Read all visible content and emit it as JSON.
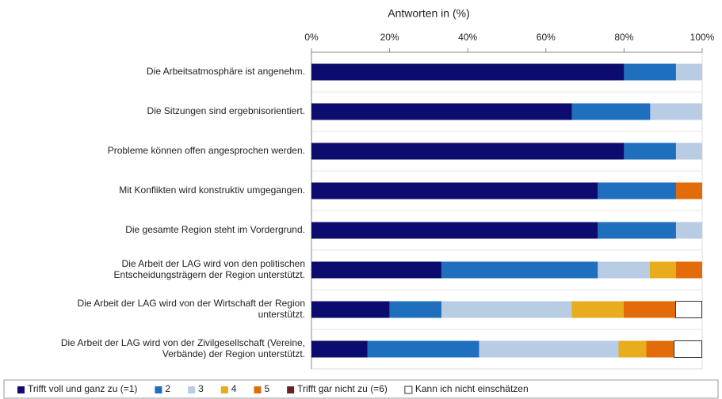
{
  "chart_data": {
    "type": "stacked-barh",
    "xlabel": "Antworten in (%)",
    "categories": [
      [
        "Die Arbeitsatmosphäre ist angenehm."
      ],
      [
        "Die Sitzungen sind ergebnisorientiert."
      ],
      [
        "Probleme können offen angesprochen werden."
      ],
      [
        "Mit Konflikten wird konstruktiv umgegangen."
      ],
      [
        "Die gesamte Region steht im Vordergrund."
      ],
      [
        "Die Arbeit der LAG wird von den politischen",
        "Entscheidungsträgern der Region unterstützt."
      ],
      [
        "Die Arbeit der LAG wird von der Wirtschaft der Region",
        "unterstützt."
      ],
      [
        "Die Arbeit der LAG wird von der Zivilgesellschaft (Vereine,",
        "Verbände) der Region unterstützt."
      ]
    ],
    "series": [
      {
        "name": "Trifft voll und ganz zu (=1)",
        "color": "#0c0c6e",
        "values": [
          80,
          66.7,
          80,
          73.3,
          73.3,
          33.3,
          20,
          14.3
        ]
      },
      {
        "name": "2",
        "color": "#1f6fbf",
        "values": [
          13.3,
          20,
          13.3,
          20,
          20,
          40,
          13.3,
          28.6
        ]
      },
      {
        "name": "3",
        "color": "#b8cce4",
        "values": [
          6.7,
          13.3,
          6.7,
          0,
          6.7,
          13.3,
          33.3,
          35.7
        ]
      },
      {
        "name": "4",
        "color": "#e8ac1c",
        "values": [
          0,
          0,
          0,
          0,
          0,
          6.7,
          13.3,
          7.1
        ]
      },
      {
        "name": "5",
        "color": "#e36c0a",
        "values": [
          0,
          0,
          0,
          6.7,
          0,
          6.7,
          13.3,
          7.1
        ]
      },
      {
        "name": "Trifft gar nicht zu (=6)",
        "color": "#632523",
        "values": [
          0,
          0,
          0,
          0,
          0,
          0,
          0,
          0
        ]
      },
      {
        "name": "Kann ich nicht einschätzen",
        "color": "#ffffff",
        "values": [
          0,
          0,
          0,
          0,
          0,
          0,
          6.7,
          7.1
        ]
      }
    ],
    "xlim": [
      0,
      100
    ],
    "xticks": [
      {
        "value": 0,
        "label": "0%"
      },
      {
        "value": 20,
        "label": "20%"
      },
      {
        "value": 40,
        "label": "40%"
      },
      {
        "value": 60,
        "label": "60%"
      },
      {
        "value": 80,
        "label": "80%"
      },
      {
        "value": 100,
        "label": "100%"
      }
    ],
    "legend": "bottom"
  }
}
